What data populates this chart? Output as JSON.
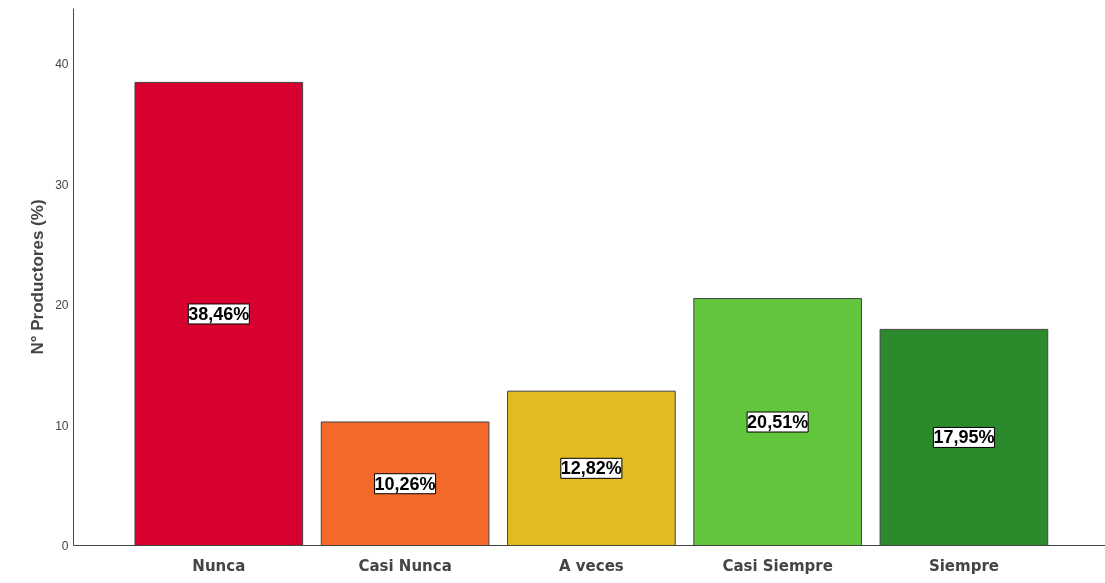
{
  "chart_data": {
    "type": "bar",
    "ylabel": "N° Productores (%)",
    "categories": [
      "Nunca",
      "Casi Nunca",
      "A veces",
      "Casi Siempre",
      "Siempre"
    ],
    "values": [
      38.46,
      10.26,
      12.82,
      20.51,
      17.95
    ],
    "colors": [
      "#d7002f",
      "#f4692a",
      "#e2bb22",
      "#62c63c",
      "#2a8a2c"
    ],
    "value_labels": [
      "38,46%",
      "10,26%",
      "12,82%",
      "20,51%",
      "17,95%"
    ],
    "ylim": [
      0,
      44.6
    ],
    "yticks": [
      0,
      10,
      20,
      30,
      40
    ],
    "grid": false
  }
}
